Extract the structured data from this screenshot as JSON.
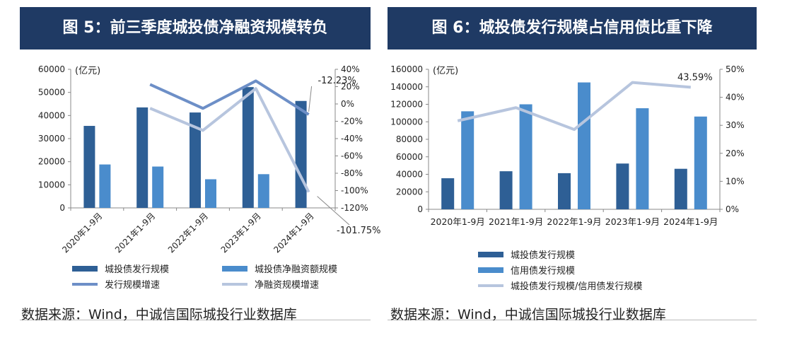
{
  "chart_data": [
    {
      "type": "bar",
      "title": "图 5：前三季度城投债净融资规模转负",
      "unit_label": "(亿元)",
      "categories": [
        "2020年1-9月",
        "2021年1-9月",
        "2022年1-9月",
        "2023年1-9月",
        "2024年1-9月"
      ],
      "series": [
        {
          "name": "城投债发行规模",
          "kind": "bar",
          "axis": "left",
          "color": "#2e5f95",
          "values": [
            35500,
            43500,
            41300,
            52300,
            46300
          ]
        },
        {
          "name": "城投债净融资额规模",
          "kind": "bar",
          "axis": "left",
          "color": "#4a8ccc",
          "values": [
            18800,
            17900,
            12400,
            14600,
            null
          ]
        },
        {
          "name": "发行规模增速",
          "kind": "line",
          "axis": "right",
          "color": "#6d8fc7",
          "values": [
            null,
            22.5,
            -5.1,
            26.6,
            -12.23
          ]
        },
        {
          "name": "净融资规模增速",
          "kind": "line",
          "axis": "right",
          "color": "#b7c5de",
          "values": [
            null,
            -5.0,
            -30.5,
            17.8,
            -101.75
          ]
        }
      ],
      "ylim_left": [
        0,
        60000
      ],
      "yticks_left": [
        0,
        10000,
        20000,
        30000,
        40000,
        50000,
        60000
      ],
      "ylim_right": [
        -120,
        40
      ],
      "yticks_right": [
        -120,
        -100,
        -80,
        -60,
        -40,
        -20,
        0,
        20,
        40
      ],
      "right_tick_suffix": "%",
      "annotations": [
        "-12.23%",
        "-101.75%"
      ],
      "legend_position": "bottom"
    },
    {
      "type": "bar",
      "title": "图 6：城投债发行规模占信用债比重下降",
      "unit_label": "(亿元)",
      "categories": [
        "2020年1-9月",
        "2021年1-9月",
        "2022年1-9月",
        "2023年1-9月",
        "2024年1-9月"
      ],
      "series": [
        {
          "name": "城投债发行规模",
          "kind": "bar",
          "axis": "left",
          "color": "#2e5f95",
          "values": [
            35500,
            43500,
            41300,
            52300,
            46300
          ]
        },
        {
          "name": "信用债发行规模",
          "kind": "bar",
          "axis": "left",
          "color": "#4a8ccc",
          "values": [
            112000,
            120000,
            145000,
            115500,
            106000
          ]
        },
        {
          "name": "城投债发行规模/信用债发行规模",
          "kind": "line",
          "axis": "right",
          "color": "#b7c5de",
          "values": [
            31.6,
            36.3,
            28.5,
            45.3,
            43.59
          ]
        }
      ],
      "ylim_left": [
        0,
        160000
      ],
      "yticks_left": [
        0,
        20000,
        40000,
        60000,
        80000,
        100000,
        120000,
        140000,
        160000
      ],
      "ylim_right": [
        0,
        50
      ],
      "yticks_right": [
        0,
        10,
        20,
        30,
        40,
        50
      ],
      "right_tick_suffix": "%",
      "annotations": [
        "43.59%"
      ],
      "legend_position": "bottom"
    }
  ],
  "sources": {
    "left": "数据来源：Wind，中诚信国际城投行业数据库",
    "right": "数据来源：Wind，中诚信国际城投行业数据库"
  }
}
